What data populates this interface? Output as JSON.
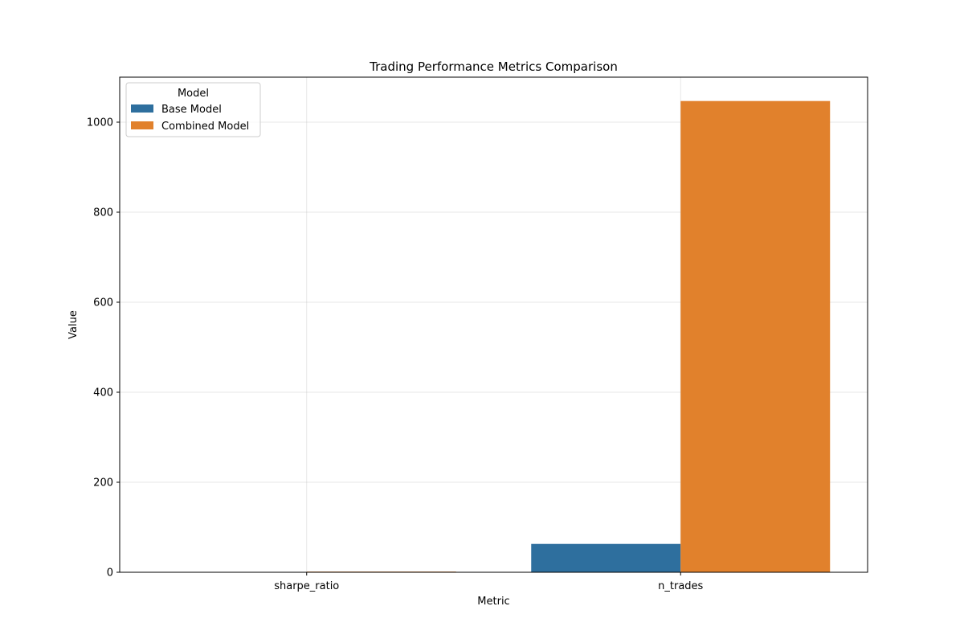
{
  "chart_data": {
    "type": "bar",
    "title": "Trading Performance Metrics Comparison",
    "xlabel": "Metric",
    "ylabel": "Value",
    "categories": [
      "sharpe_ratio",
      "n_trades"
    ],
    "series": [
      {
        "name": "Base Model",
        "color": "#2e6f9e",
        "values": [
          0.2,
          63
        ]
      },
      {
        "name": "Combined Model",
        "color": "#e1812c",
        "values": [
          1.5,
          1047
        ]
      }
    ],
    "ylim": [
      0,
      1100
    ],
    "yticks": [
      0,
      200,
      400,
      600,
      800,
      1000
    ],
    "grid": true,
    "legend": {
      "title": "Model",
      "placement": "top-left"
    }
  }
}
